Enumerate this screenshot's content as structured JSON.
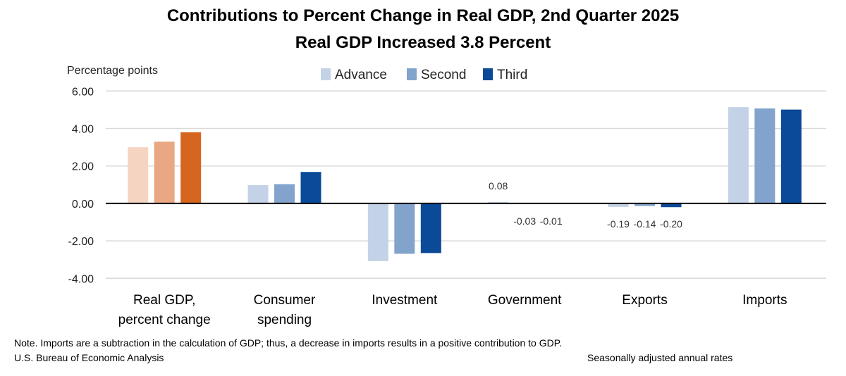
{
  "chart_data": {
    "type": "bar",
    "title": "Contributions to Percent Change in Real GDP, 2nd Quarter 2025",
    "subtitle": "Real GDP Increased 3.8 Percent",
    "ylabel": "Percentage points",
    "ylim": [
      -4,
      6
    ],
    "yticks": [
      "-4.00",
      "-2.00",
      "0.00",
      "2.00",
      "4.00",
      "6.00"
    ],
    "grid": true,
    "legend_position": "top",
    "categories": [
      "Real GDP,\npercent change",
      "Consumer\nspending",
      "Investment",
      "Government",
      "Exports",
      "Imports"
    ],
    "series": [
      {
        "name": "Advance",
        "values": [
          3.0,
          0.98,
          -3.08,
          0.08,
          -0.19,
          5.14
        ],
        "color": "#c3d2e6",
        "highlight_color": "#f5d5c2"
      },
      {
        "name": "Second",
        "values": [
          3.3,
          1.03,
          -2.69,
          -0.03,
          -0.14,
          5.07
        ],
        "color": "#82a4cc",
        "highlight_color": "#e9a883"
      },
      {
        "name": "Third",
        "values": [
          3.8,
          1.68,
          -2.65,
          -0.01,
          -0.2,
          5.01
        ],
        "color": "#0b4a99",
        "highlight_color": "#d5661f"
      }
    ],
    "data_labels": [
      {
        "category": 3,
        "series": 0,
        "text": "0.08"
      },
      {
        "category": 3,
        "series": 1,
        "text": "-0.03"
      },
      {
        "category": 3,
        "series": 2,
        "text": "-0.01"
      },
      {
        "category": 4,
        "series": 0,
        "text": "-0.19"
      },
      {
        "category": 4,
        "series": 1,
        "text": "-0.14"
      },
      {
        "category": 4,
        "series": 2,
        "text": "-0.20"
      }
    ],
    "highlighted_category": 0
  },
  "footer": {
    "note": "Note. Imports are a subtraction in the calculation of GDP; thus, a decrease in imports results in a positive contribution to GDP.",
    "source": "U.S. Bureau of Economic Analysis",
    "rates": "Seasonally adjusted annual rates"
  }
}
